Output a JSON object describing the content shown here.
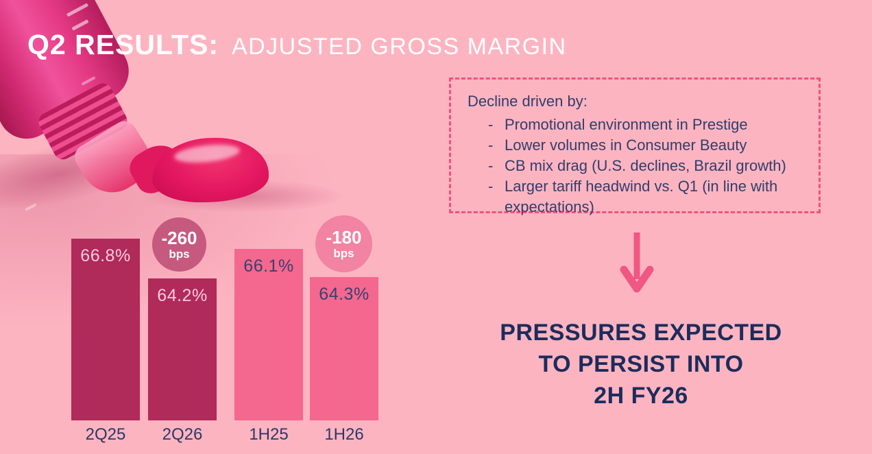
{
  "slide": {
    "title": {
      "primary": "Q2 RESULTS:",
      "secondary": "ADJUSTED GROSS MARGIN"
    },
    "callout_box": {
      "heading": "Decline driven by:",
      "bullets": [
        "Promotional environment in Prestige",
        "Lower volumes in Consumer Beauty",
        "CB mix drag (U.S. declines, Brazil growth)",
        "Larger tariff headwind vs. Q1 (in line with expectations)"
      ]
    },
    "conclusion": {
      "line1": "PRESSURES EXPECTED",
      "line2": "TO PERSIST INTO",
      "line3": "2H FY26"
    }
  },
  "chart_data": {
    "type": "bar",
    "categories": [
      "2Q25",
      "2Q26",
      "1H25",
      "1H26"
    ],
    "values": [
      66.8,
      64.2,
      66.1,
      64.3
    ],
    "labels": [
      "66.8%",
      "64.2%",
      "66.1%",
      "64.3%"
    ],
    "bar_colors": [
      "#B02A5A",
      "#B02A5A",
      "#F4678E",
      "#F4678E"
    ],
    "data_label_colors": [
      "#F8CCD8",
      "#F8CCD8",
      "#3C3F6D",
      "#3C3F6D"
    ],
    "ylim": [
      55,
      68
    ],
    "grid": false,
    "legend": false,
    "xlabel": "",
    "ylabel": "",
    "badges": [
      {
        "value": "-260",
        "unit": "bps",
        "applies_to": [
          "2Q25",
          "2Q26"
        ],
        "color": "#C6597E"
      },
      {
        "value": "-180",
        "unit": "bps",
        "applies_to": [
          "1H25",
          "1H26"
        ],
        "color": "#F283A2"
      }
    ]
  },
  "colors": {
    "background": "#FDB4C1",
    "title_text": "#FFFFFF",
    "navy_text": "#1D2C5B",
    "callout_text": "#313D69",
    "callout_border": "#EF537A",
    "arrow": "#F05783",
    "dark_bar": "#B02A5A",
    "light_bar": "#F4678E"
  }
}
